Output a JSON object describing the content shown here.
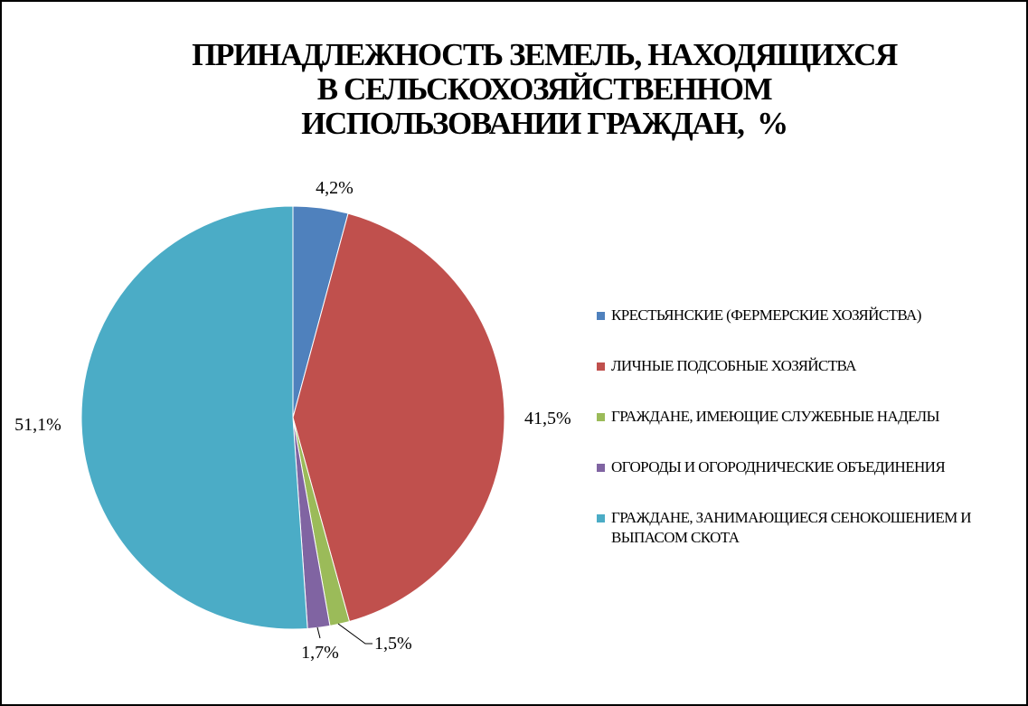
{
  "chart_data": {
    "type": "pie",
    "title_lines": [
      "ПРИНАДЛЕЖНОСТЬ ЗЕМЕЛЬ, НАХОДЯЩИХСЯ",
      "В СЕЛЬСКОХОЗЯЙСТВЕННОМ",
      "ИСПОЛЬЗОВАНИИ ГРАЖДАН,  %"
    ],
    "legend_position": "right",
    "slices": [
      {
        "name": "КРЕСТЬЯНСКИЕ (ФЕРМЕРСКИЕ ХОЗЯЙСТВА)",
        "value": 4.2,
        "label": "4,2%",
        "color": "#4f81bd"
      },
      {
        "name": "ЛИЧНЫЕ ПОДСОБНЫЕ ХОЗЯЙСТВА",
        "value": 41.5,
        "label": "41,5%",
        "color": "#c0504d"
      },
      {
        "name": "ГРАЖДАНЕ, ИМЕЮЩИЕ СЛУЖЕБНЫЕ НАДЕЛЫ",
        "value": 1.5,
        "label": "1,5%",
        "color": "#9bbb59"
      },
      {
        "name": "ОГОРОДЫ И ОГОРОДНИЧЕСКИЕ ОБЪЕДИНЕНИЯ",
        "value": 1.7,
        "label": "1,7%",
        "color": "#8064a2"
      },
      {
        "name": "ГРАЖДАНЕ, ЗАНИМАЮЩИЕСЯ СЕНОКОШЕНИЕМ И ВЫПАСОМ СКОТА",
        "value": 51.1,
        "label": "51,1%",
        "color": "#4bacc6"
      }
    ]
  }
}
